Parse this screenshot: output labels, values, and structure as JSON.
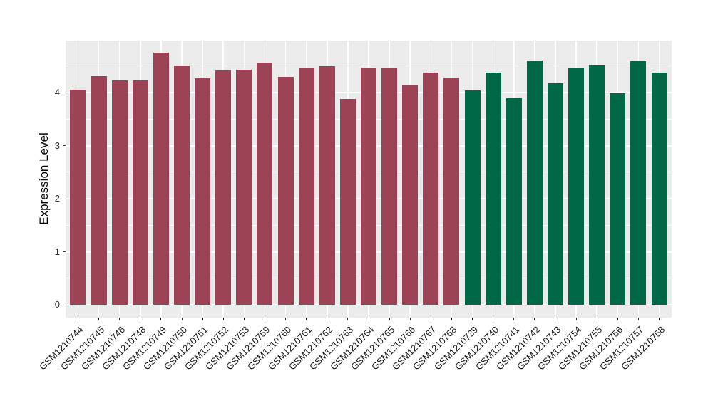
{
  "chart_data": {
    "type": "bar",
    "title": "",
    "xlabel": "",
    "ylabel": "Expression Level",
    "legend_position": "none",
    "grid": "major-and-minor-white-on-grey-panel",
    "panel_bg": "#EBEBEB",
    "grid_color": "#FFFFFF",
    "tick_color": "#333333",
    "axis_text_color": "#1a1a1a",
    "y_ticks": [
      0,
      1,
      2,
      3,
      4
    ],
    "y_minor_ticks": [
      0.5,
      1.5,
      2.5,
      3.5,
      4.5
    ],
    "ylim": [
      -0.24,
      4.98
    ],
    "group_colors": {
      "1": "#9B4254",
      "2": "#006847"
    },
    "bars": [
      {
        "label": "GSM1210744",
        "value": 4.05,
        "group": 1
      },
      {
        "label": "GSM1210745",
        "value": 4.31,
        "group": 1
      },
      {
        "label": "GSM1210746",
        "value": 4.23,
        "group": 1
      },
      {
        "label": "GSM1210748",
        "value": 4.23,
        "group": 1
      },
      {
        "label": "GSM1210749",
        "value": 4.75,
        "group": 1
      },
      {
        "label": "GSM1210750",
        "value": 4.51,
        "group": 1
      },
      {
        "label": "GSM1210751",
        "value": 4.27,
        "group": 1
      },
      {
        "label": "GSM1210752",
        "value": 4.42,
        "group": 1
      },
      {
        "label": "GSM1210753",
        "value": 4.43,
        "group": 1
      },
      {
        "label": "GSM1210759",
        "value": 4.57,
        "group": 1
      },
      {
        "label": "GSM1210760",
        "value": 4.29,
        "group": 1
      },
      {
        "label": "GSM1210761",
        "value": 4.45,
        "group": 1
      },
      {
        "label": "GSM1210762",
        "value": 4.5,
        "group": 1
      },
      {
        "label": "GSM1210763",
        "value": 3.88,
        "group": 1
      },
      {
        "label": "GSM1210764",
        "value": 4.47,
        "group": 1
      },
      {
        "label": "GSM1210765",
        "value": 4.46,
        "group": 1
      },
      {
        "label": "GSM1210766",
        "value": 4.13,
        "group": 1
      },
      {
        "label": "GSM1210767",
        "value": 4.37,
        "group": 1
      },
      {
        "label": "GSM1210768",
        "value": 4.28,
        "group": 1
      },
      {
        "label": "GSM1210739",
        "value": 4.04,
        "group": 2
      },
      {
        "label": "GSM1210740",
        "value": 4.37,
        "group": 2
      },
      {
        "label": "GSM1210741",
        "value": 3.89,
        "group": 2
      },
      {
        "label": "GSM1210742",
        "value": 4.61,
        "group": 2
      },
      {
        "label": "GSM1210743",
        "value": 4.18,
        "group": 2
      },
      {
        "label": "GSM1210754",
        "value": 4.45,
        "group": 2
      },
      {
        "label": "GSM1210755",
        "value": 4.53,
        "group": 2
      },
      {
        "label": "GSM1210756",
        "value": 3.99,
        "group": 2
      },
      {
        "label": "GSM1210757",
        "value": 4.59,
        "group": 2
      },
      {
        "label": "GSM1210758",
        "value": 4.38,
        "group": 2
      }
    ]
  }
}
